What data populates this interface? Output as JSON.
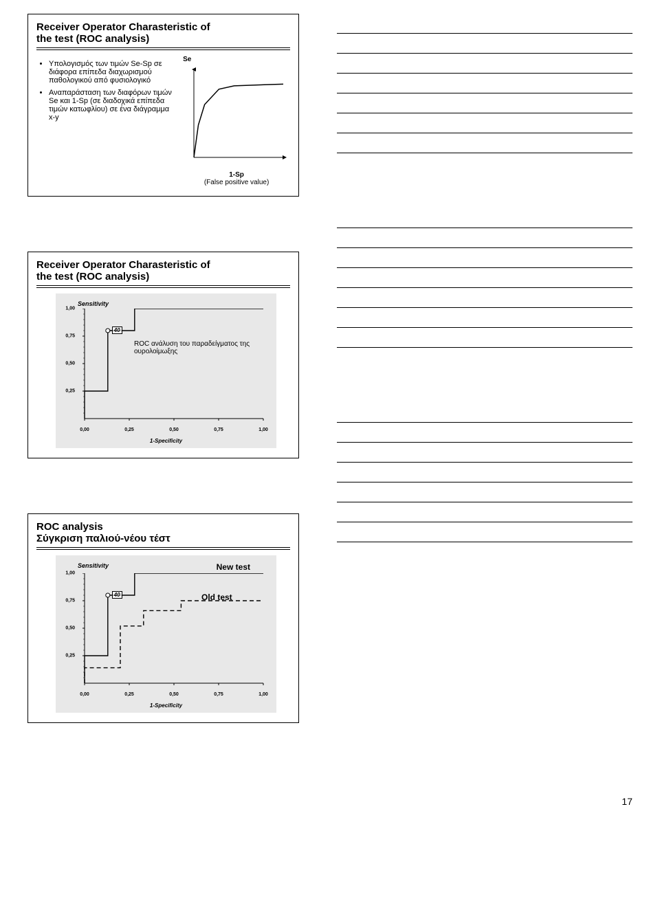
{
  "slide1": {
    "title_l1": "Receiver Operator Charasteristic of",
    "title_l2": "the test (ROC analysis)",
    "bullets": [
      "Υπολογισμός των τιμών Se-Sp σε διάφορα επίπεδα διαχωρισμού παθολογικού από φυσιολογικό",
      "Αναπαράσταση των διαφόρων τιμών Se και 1-Sp (σε διαδοχικά επίπεδα τιμών κατωφλίου) σε ένα διάγραμμα x-y"
    ],
    "y_label": "Se",
    "x_label_top": "1-Sp",
    "x_label_sub": "(False positive value)",
    "curve_color": "#000000",
    "curve_points": [
      [
        0,
        0
      ],
      [
        0.05,
        0.38
      ],
      [
        0.12,
        0.62
      ],
      [
        0.28,
        0.8
      ],
      [
        0.45,
        0.84
      ],
      [
        1.0,
        0.86
      ]
    ]
  },
  "slide2": {
    "title_l1": "Receiver Operator Charasteristic of",
    "title_l2": "the test (ROC analysis)",
    "chart_bg": "#e8e8e8",
    "y_label": "Sensitivity",
    "x_label": "1-Specificity",
    "y_ticks": [
      "1,00",
      "0,75",
      "0,50",
      "0,25"
    ],
    "x_ticks": [
      "0,00",
      "0,25",
      "0,50",
      "0,75",
      "1,00"
    ],
    "point_label": "40",
    "point_xy": [
      0.13,
      0.8
    ],
    "annotation": "ROC ανάλυση του παραδείγματος της ουρολοίμωξης",
    "series": [
      {
        "color": "#000000",
        "dash": "",
        "points": [
          [
            0,
            0
          ],
          [
            0,
            0.25
          ],
          [
            0.13,
            0.25
          ],
          [
            0.13,
            0.8
          ],
          [
            0.28,
            0.8
          ],
          [
            0.28,
            1.0
          ],
          [
            1.0,
            1.0
          ]
        ]
      }
    ]
  },
  "slide3": {
    "title_l1": "ROC analysis",
    "title_l2": "Σύγκριση παλιού-νέου τέστ",
    "chart_bg": "#e8e8e8",
    "y_label": "Sensitivity",
    "x_label": "1-Specificity",
    "y_ticks": [
      "1,00",
      "0,75",
      "0,50",
      "0,25"
    ],
    "x_ticks": [
      "0,00",
      "0,25",
      "0,50",
      "0,75",
      "1,00"
    ],
    "point_label": "40",
    "point_xy": [
      0.13,
      0.8
    ],
    "legend_new": "New test",
    "legend_old": "Old test",
    "series": [
      {
        "color": "#000000",
        "dash": "",
        "points": [
          [
            0,
            0
          ],
          [
            0,
            0.25
          ],
          [
            0.13,
            0.25
          ],
          [
            0.13,
            0.8
          ],
          [
            0.28,
            0.8
          ],
          [
            0.28,
            1.0
          ],
          [
            1.0,
            1.0
          ]
        ]
      },
      {
        "color": "#000000",
        "dash": "6 4",
        "points": [
          [
            0,
            0
          ],
          [
            0,
            0.14
          ],
          [
            0.2,
            0.14
          ],
          [
            0.2,
            0.52
          ],
          [
            0.33,
            0.52
          ],
          [
            0.33,
            0.66
          ],
          [
            0.54,
            0.66
          ],
          [
            0.54,
            0.75
          ],
          [
            1.0,
            0.75
          ]
        ]
      }
    ]
  },
  "page_number": "17",
  "notes_line_count": 7
}
